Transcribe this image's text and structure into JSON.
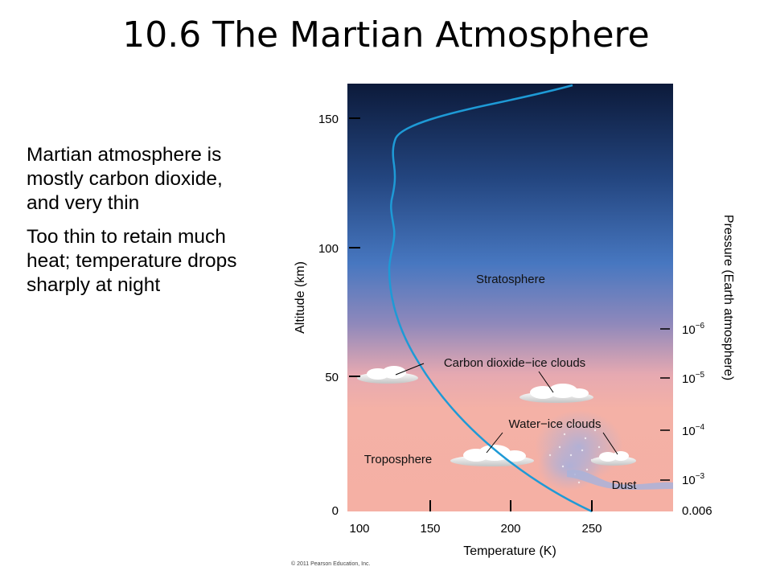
{
  "title": "10.6 The Martian Atmosphere",
  "bullets": [
    "Martian atmosphere is mostly carbon dioxide, and very thin",
    "Too thin to retain much heat; temperature drops sharply at night"
  ],
  "figure": {
    "altitude_axis": {
      "label": "Altitude (km)",
      "ticks": [
        "0",
        "50",
        "100",
        "150"
      ]
    },
    "temperature_axis": {
      "label": "Temperature (K)",
      "ticks": [
        "100",
        "150",
        "200",
        "250"
      ]
    },
    "pressure_axis": {
      "label": "Pressure (Earth atmosphere)",
      "ticks": [
        {
          "base": "0.006",
          "exp": ""
        },
        {
          "base": "10",
          "exp": "−3"
        },
        {
          "base": "10",
          "exp": "−4"
        },
        {
          "base": "10",
          "exp": "−5"
        },
        {
          "base": "10",
          "exp": "−6"
        }
      ]
    },
    "region_labels": {
      "stratosphere": "Stratosphere",
      "troposphere": "Troposphere",
      "co2_clouds": "Carbon dioxide−ice clouds",
      "water_clouds": "Water−ice clouds",
      "dust": "Dust"
    },
    "colors": {
      "sky_top": "#0c1a3a",
      "sky_mid": "#4a7ac4",
      "sky_low": "#f2b1a8",
      "curve": "#1e9ad6"
    },
    "credit": "© 2011 Pearson Education, Inc."
  }
}
